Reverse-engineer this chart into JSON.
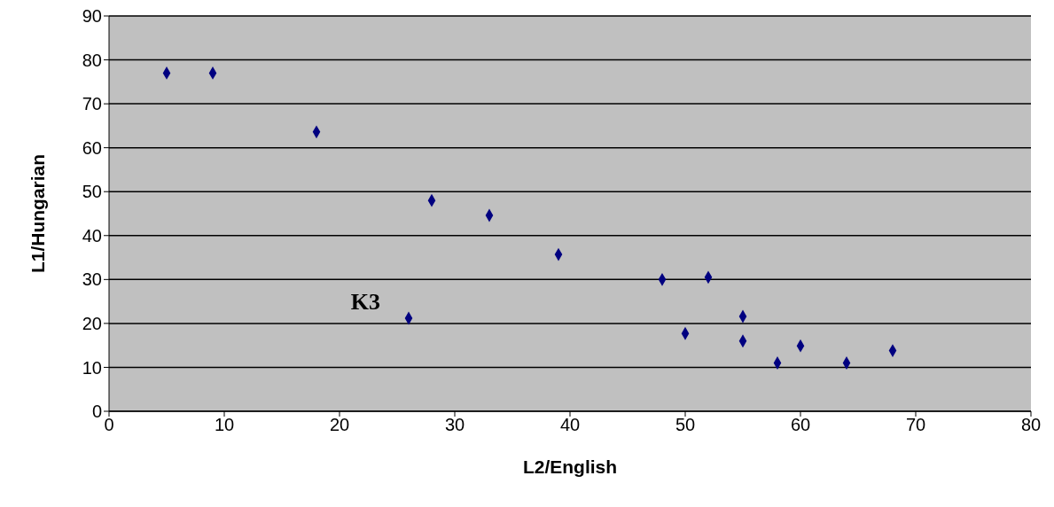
{
  "chart_data": {
    "type": "scatter",
    "xlabel": "L2/English",
    "ylabel": "L1/Hungarian",
    "x": [
      5,
      9,
      18,
      28,
      33,
      39,
      48,
      52,
      26,
      50,
      55,
      55,
      58,
      60,
      64,
      68
    ],
    "series": [
      {
        "color": "#000080",
        "values": [
          77,
          77,
          63.6,
          48,
          44.6,
          35.7,
          30,
          30.5,
          21.2,
          17.7,
          21.6,
          16,
          11,
          14.9,
          11,
          13.8
        ]
      }
    ],
    "xlim": [
      0,
      80
    ],
    "xticks": [
      0,
      10,
      20,
      30,
      40,
      50,
      60,
      70,
      80
    ],
    "ylim": [
      0,
      90
    ],
    "yticks": [
      0,
      10,
      20,
      30,
      40,
      50,
      60,
      70,
      80,
      90
    ],
    "grid": "y",
    "marker": "diamond",
    "legend": false,
    "annotations": [
      {
        "text": "K3",
        "x": 26,
        "y": 21.2
      }
    ]
  }
}
